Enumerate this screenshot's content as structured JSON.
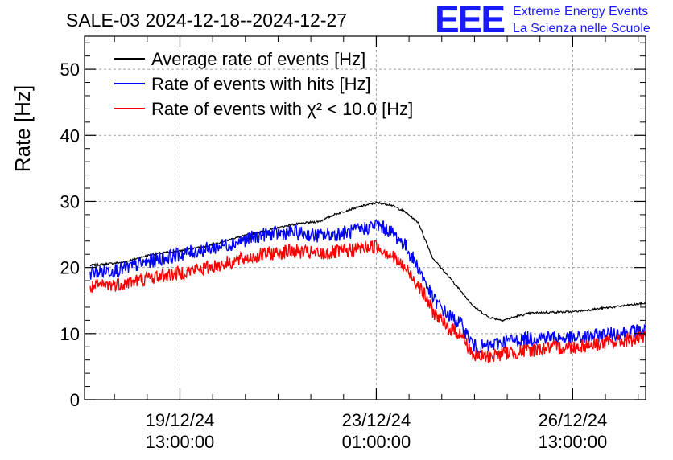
{
  "chart_data": {
    "type": "line",
    "title": "SALE-03 2024-12-18--2024-12-27",
    "ylabel": "Rate [Hz]",
    "xlabel": "",
    "ylim": [
      0,
      55
    ],
    "yticks": [
      0,
      10,
      20,
      30,
      40,
      50
    ],
    "xlim": [
      -1.7,
      8.3
    ],
    "x_unit": "days relative to 19/12/24 13:00:00",
    "xticks": [
      {
        "x": 0,
        "date": "19/12/24",
        "time": "13:00:00"
      },
      {
        "x": 3.5,
        "date": "23/12/24",
        "time": "01:00:00"
      },
      {
        "x": 7,
        "date": "26/12/24",
        "time": "13:00:00"
      }
    ],
    "grid": true,
    "legend": "top-left",
    "logo": {
      "text": "EEE",
      "line1": "Extreme Energy Events",
      "line2": "La Scienza nelle Scuole"
    },
    "series": [
      {
        "name": "Average rate of events [Hz]",
        "color": "#000000",
        "noise": 0.15,
        "x": [
          -1.6,
          -1.0,
          -0.5,
          0.0,
          0.5,
          1.0,
          1.5,
          2.0,
          2.5,
          2.75,
          3.0,
          3.25,
          3.5,
          3.75,
          4.0,
          4.25,
          4.5,
          4.75,
          5.0,
          5.25,
          5.5,
          5.6,
          5.75,
          6.0,
          6.25,
          6.5,
          7.0,
          7.5,
          8.0,
          8.3
        ],
        "y": [
          20.3,
          20.8,
          22.0,
          22.5,
          23.3,
          24.5,
          25.5,
          26.5,
          27.0,
          28.0,
          28.7,
          29.3,
          29.8,
          29.5,
          28.5,
          26.8,
          21.5,
          19.0,
          16.5,
          14.0,
          12.5,
          12.3,
          12.0,
          12.6,
          13.1,
          13.2,
          13.3,
          13.8,
          14.3,
          14.6
        ]
      },
      {
        "name": "Rate of events with hits [Hz]",
        "color": "#0000ff",
        "noise": 1.1,
        "x": [
          -1.6,
          -1.0,
          -0.5,
          0.0,
          0.5,
          1.0,
          1.5,
          2.0,
          2.5,
          3.0,
          3.25,
          3.5,
          3.75,
          4.0,
          4.25,
          4.5,
          4.75,
          5.0,
          5.25,
          5.5,
          5.75,
          6.0,
          6.25,
          6.5,
          7.0,
          7.5,
          8.0,
          8.3
        ],
        "y": [
          19.2,
          19.8,
          21.0,
          22.0,
          22.8,
          23.8,
          25.0,
          25.3,
          24.8,
          25.3,
          25.8,
          26.5,
          25.5,
          23.5,
          20.0,
          15.5,
          13.0,
          11.5,
          8.0,
          8.0,
          8.8,
          9.0,
          9.3,
          9.5,
          9.2,
          9.8,
          10.3,
          10.5
        ]
      },
      {
        "name": "Rate of events with χ² < 10.0 [Hz]",
        "color": "#ff0000",
        "noise": 1.1,
        "x": [
          -1.6,
          -1.0,
          -0.5,
          0.0,
          0.5,
          1.0,
          1.5,
          2.0,
          2.5,
          3.0,
          3.25,
          3.5,
          3.75,
          4.0,
          4.25,
          4.5,
          4.75,
          5.0,
          5.25,
          5.5,
          5.75,
          6.0,
          6.25,
          6.5,
          7.0,
          7.5,
          8.0,
          8.3
        ],
        "y": [
          17.0,
          17.6,
          18.5,
          19.2,
          20.0,
          21.0,
          22.0,
          22.5,
          22.0,
          22.5,
          23.0,
          23.2,
          22.0,
          20.0,
          17.5,
          13.5,
          11.0,
          10.0,
          6.5,
          6.5,
          7.0,
          7.2,
          7.5,
          7.8,
          8.0,
          8.5,
          9.0,
          9.3
        ]
      }
    ]
  }
}
